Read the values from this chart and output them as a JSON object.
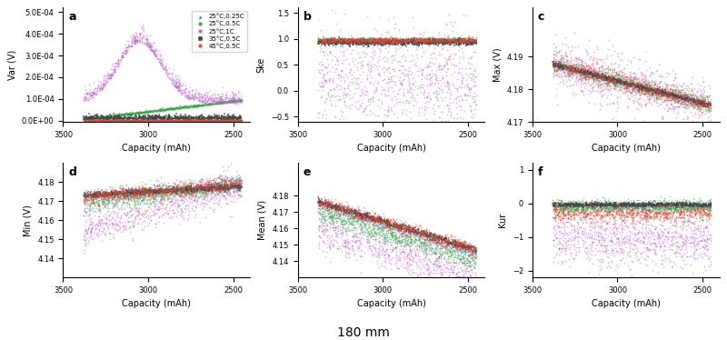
{
  "conditions": [
    {
      "label": "25°C,0.25C",
      "color": "#4488cc",
      "marker": "^",
      "ms": 1.5
    },
    {
      "label": "25°C,0.5C",
      "color": "#33aa44",
      "marker": "o",
      "ms": 1.5
    },
    {
      "label": "25°C,1C",
      "color": "#bb66cc",
      "marker": "o",
      "ms": 1.5
    },
    {
      "label": "35°C,0.5C",
      "color": "#444444",
      "marker": "s",
      "ms": 1.5
    },
    {
      "label": "45°C,0.5C",
      "color": "#ee4433",
      "marker": "o",
      "ms": 1.5
    }
  ],
  "ylabels": [
    "Var (V)",
    "Ske",
    "Max (V)",
    "Min (V)",
    "Mean (V)",
    "Kur"
  ],
  "xlabels": [
    "Capacity (mAh)",
    "Capacity (mAh)",
    "Capacity (mAh)",
    "Capacity (mAh)",
    "Capacity (mAh)",
    "Capacity (mAh)"
  ],
  "subplot_labels": [
    "a",
    "b",
    "c",
    "d",
    "e",
    "f"
  ],
  "bottom_label": "180 mm",
  "xlim": [
    3500,
    2400
  ],
  "ylim_a": [
    -5e-06,
    0.00052
  ],
  "ylim_b": [
    -0.6,
    1.6
  ],
  "ylim_c": [
    4.17,
    4.205
  ],
  "ylim_d": [
    4.13,
    4.19
  ],
  "ylim_e": [
    4.13,
    4.2
  ],
  "ylim_f": [
    -2.2,
    1.2
  ]
}
